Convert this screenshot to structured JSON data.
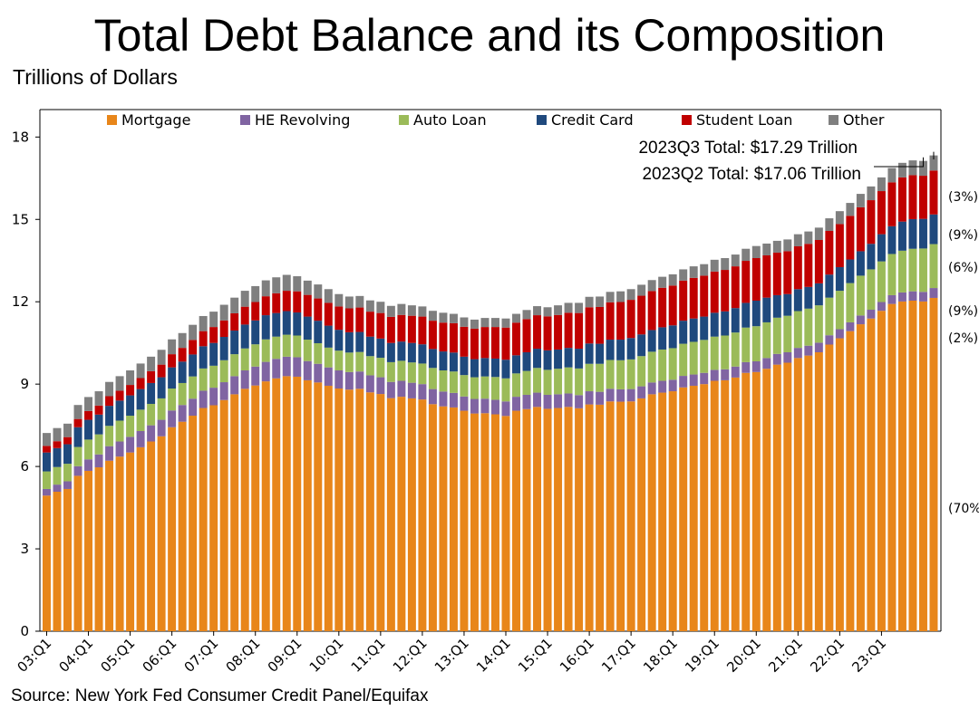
{
  "title": "Total Debt Balance and its Composition",
  "subtitle": "Trillions of Dollars",
  "source": "Source: New York Fed Consumer Credit Panel/Equifax",
  "chart_data": {
    "type": "bar",
    "stacked": true,
    "ylim": [
      0,
      19
    ],
    "yticks": [
      0,
      3,
      6,
      9,
      12,
      15,
      18
    ],
    "xtick_labels": [
      "03:Q1",
      "04:Q1",
      "05:Q1",
      "06:Q1",
      "07:Q1",
      "08:Q1",
      "09:Q1",
      "10:Q1",
      "11:Q1",
      "12:Q1",
      "13:Q1",
      "14:Q1",
      "15:Q1",
      "16:Q1",
      "17:Q1",
      "18:Q1",
      "19:Q1",
      "20:Q1",
      "21:Q1",
      "22:Q1",
      "23:Q1"
    ],
    "legend_position": "top",
    "grid": false,
    "series": [
      {
        "name": "Mortgage",
        "color": "#E8861A",
        "values": [
          4.94,
          5.08,
          5.18,
          5.66,
          5.84,
          5.97,
          6.21,
          6.36,
          6.51,
          6.7,
          6.91,
          7.1,
          7.43,
          7.63,
          7.85,
          8.13,
          8.23,
          8.42,
          8.63,
          8.83,
          8.95,
          9.1,
          9.21,
          9.29,
          9.27,
          9.14,
          9.06,
          8.94,
          8.84,
          8.8,
          8.83,
          8.7,
          8.64,
          8.49,
          8.54,
          8.48,
          8.44,
          8.27,
          8.19,
          8.15,
          8.03,
          7.93,
          7.94,
          7.9,
          7.84,
          8.03,
          8.09,
          8.17,
          8.1,
          8.13,
          8.17,
          8.12,
          8.26,
          8.25,
          8.37,
          8.36,
          8.37,
          8.48,
          8.63,
          8.69,
          8.74,
          8.88,
          8.94,
          9.0,
          9.12,
          9.14,
          9.24,
          9.41,
          9.44,
          9.56,
          9.71,
          9.78,
          9.95,
          10.04,
          10.16,
          10.44,
          10.67,
          10.93,
          11.18,
          11.39,
          11.67,
          11.92,
          12.01,
          12.04,
          12.01,
          12.14
        ]
      },
      {
        "name": "HE Revolving",
        "color": "#8064A2",
        "values": [
          0.24,
          0.26,
          0.28,
          0.35,
          0.42,
          0.47,
          0.53,
          0.55,
          0.57,
          0.59,
          0.59,
          0.6,
          0.61,
          0.61,
          0.62,
          0.63,
          0.64,
          0.65,
          0.66,
          0.67,
          0.69,
          0.71,
          0.71,
          0.71,
          0.71,
          0.7,
          0.68,
          0.67,
          0.66,
          0.64,
          0.63,
          0.62,
          0.61,
          0.59,
          0.58,
          0.57,
          0.56,
          0.55,
          0.54,
          0.53,
          0.52,
          0.53,
          0.53,
          0.53,
          0.53,
          0.51,
          0.52,
          0.52,
          0.51,
          0.5,
          0.49,
          0.48,
          0.48,
          0.47,
          0.46,
          0.45,
          0.45,
          0.44,
          0.43,
          0.43,
          0.42,
          0.42,
          0.41,
          0.41,
          0.4,
          0.4,
          0.4,
          0.39,
          0.39,
          0.39,
          0.39,
          0.38,
          0.37,
          0.36,
          0.35,
          0.34,
          0.33,
          0.32,
          0.32,
          0.32,
          0.32,
          0.32,
          0.33,
          0.34,
          0.35,
          0.36
        ]
      },
      {
        "name": "Auto Loan",
        "color": "#9BBB59",
        "values": [
          0.64,
          0.64,
          0.64,
          0.7,
          0.72,
          0.73,
          0.74,
          0.76,
          0.77,
          0.78,
          0.78,
          0.78,
          0.8,
          0.8,
          0.81,
          0.81,
          0.8,
          0.8,
          0.8,
          0.8,
          0.81,
          0.82,
          0.81,
          0.8,
          0.79,
          0.78,
          0.75,
          0.72,
          0.72,
          0.71,
          0.71,
          0.7,
          0.71,
          0.72,
          0.73,
          0.74,
          0.75,
          0.77,
          0.77,
          0.78,
          0.78,
          0.79,
          0.81,
          0.83,
          0.84,
          0.85,
          0.87,
          0.9,
          0.91,
          0.93,
          0.95,
          0.97,
          1.0,
          1.02,
          1.05,
          1.06,
          1.08,
          1.1,
          1.12,
          1.14,
          1.15,
          1.17,
          1.19,
          1.2,
          1.21,
          1.23,
          1.24,
          1.26,
          1.28,
          1.3,
          1.32,
          1.33,
          1.34,
          1.35,
          1.36,
          1.37,
          1.4,
          1.43,
          1.45,
          1.47,
          1.48,
          1.5,
          1.52,
          1.55,
          1.58,
          1.6
        ]
      },
      {
        "name": "Credit Card",
        "color": "#1F497D",
        "values": [
          0.69,
          0.69,
          0.71,
          0.72,
          0.72,
          0.72,
          0.73,
          0.73,
          0.74,
          0.75,
          0.76,
          0.77,
          0.77,
          0.78,
          0.8,
          0.81,
          0.83,
          0.85,
          0.86,
          0.87,
          0.87,
          0.88,
          0.86,
          0.86,
          0.84,
          0.84,
          0.82,
          0.8,
          0.76,
          0.74,
          0.73,
          0.71,
          0.7,
          0.7,
          0.7,
          0.71,
          0.7,
          0.69,
          0.69,
          0.69,
          0.67,
          0.66,
          0.67,
          0.67,
          0.68,
          0.66,
          0.68,
          0.7,
          0.71,
          0.7,
          0.71,
          0.72,
          0.74,
          0.73,
          0.74,
          0.75,
          0.78,
          0.79,
          0.79,
          0.81,
          0.83,
          0.84,
          0.85,
          0.85,
          0.87,
          0.88,
          0.89,
          0.9,
          0.93,
          0.9,
          0.82,
          0.79,
          0.8,
          0.79,
          0.8,
          0.84,
          0.86,
          0.86,
          0.89,
          0.93,
          0.99,
          1.01,
          1.06,
          1.08,
          1.08,
          1.08
        ]
      },
      {
        "name": "Student Loan",
        "color": "#C00000",
        "values": [
          0.24,
          0.25,
          0.26,
          0.3,
          0.32,
          0.33,
          0.35,
          0.36,
          0.38,
          0.4,
          0.43,
          0.46,
          0.48,
          0.5,
          0.53,
          0.55,
          0.58,
          0.6,
          0.63,
          0.65,
          0.67,
          0.69,
          0.72,
          0.74,
          0.77,
          0.79,
          0.81,
          0.83,
          0.85,
          0.87,
          0.89,
          0.91,
          0.93,
          0.95,
          0.97,
          0.99,
          1.01,
          1.03,
          1.05,
          1.07,
          1.09,
          1.11,
          1.13,
          1.15,
          1.17,
          1.19,
          1.21,
          1.22,
          1.24,
          1.26,
          1.28,
          1.3,
          1.32,
          1.34,
          1.36,
          1.37,
          1.39,
          1.41,
          1.42,
          1.44,
          1.45,
          1.46,
          1.48,
          1.49,
          1.5,
          1.51,
          1.52,
          1.53,
          1.55,
          1.54,
          1.55,
          1.56,
          1.56,
          1.57,
          1.58,
          1.59,
          1.57,
          1.59,
          1.6,
          1.59,
          1.57,
          1.6,
          1.61,
          1.6,
          1.57,
          1.6
        ]
      },
      {
        "name": "Other",
        "color": "#7F7F7F",
        "values": [
          0.47,
          0.48,
          0.49,
          0.51,
          0.51,
          0.52,
          0.52,
          0.53,
          0.53,
          0.53,
          0.53,
          0.54,
          0.54,
          0.54,
          0.55,
          0.55,
          0.56,
          0.57,
          0.57,
          0.58,
          0.58,
          0.58,
          0.58,
          0.58,
          0.55,
          0.52,
          0.51,
          0.5,
          0.45,
          0.43,
          0.42,
          0.41,
          0.41,
          0.4,
          0.4,
          0.38,
          0.37,
          0.36,
          0.36,
          0.34,
          0.34,
          0.33,
          0.33,
          0.33,
          0.33,
          0.32,
          0.33,
          0.33,
          0.33,
          0.35,
          0.36,
          0.37,
          0.38,
          0.38,
          0.38,
          0.39,
          0.39,
          0.4,
          0.4,
          0.4,
          0.41,
          0.41,
          0.42,
          0.42,
          0.43,
          0.43,
          0.43,
          0.44,
          0.44,
          0.43,
          0.43,
          0.43,
          0.44,
          0.45,
          0.45,
          0.46,
          0.47,
          0.47,
          0.49,
          0.5,
          0.5,
          0.52,
          0.53,
          0.54,
          0.54,
          0.55
        ]
      }
    ],
    "annotations": {
      "q3_total": "2023Q3 Total:  $17.29 Trillion",
      "q2_total": "2023Q2 Total:  $17.06 Trillion"
    },
    "share_labels": [
      {
        "series": "Other",
        "label": "(3%)"
      },
      {
        "series": "Student Loan",
        "label": "(9%)"
      },
      {
        "series": "Credit Card",
        "label": "(6%)"
      },
      {
        "series": "Auto Loan",
        "label": "(9%)"
      },
      {
        "series": "HE Revolving",
        "label": "(2%)"
      },
      {
        "series": "Mortgage",
        "label": "(70%"
      }
    ]
  }
}
